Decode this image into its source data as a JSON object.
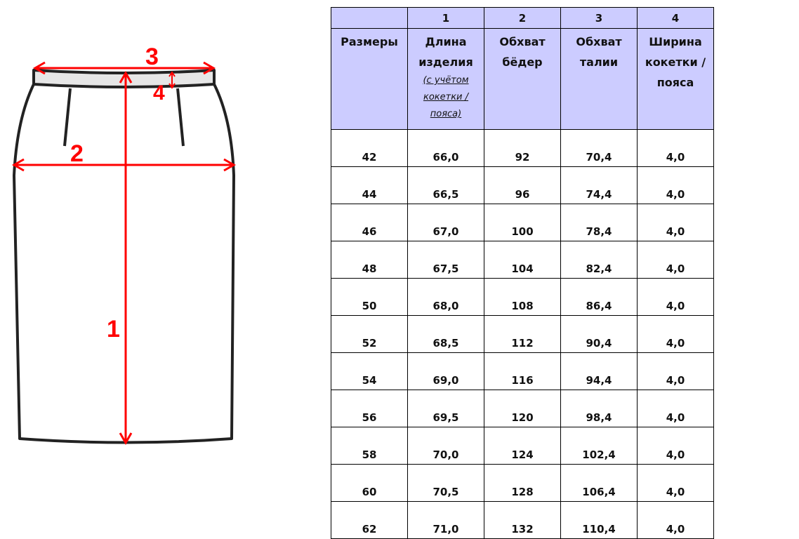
{
  "diagram": {
    "labels": [
      "1",
      "2",
      "3",
      "4"
    ],
    "accent": "#ff0000",
    "band_fill": "#e6e6e6"
  },
  "table": {
    "numbers": [
      "",
      "1",
      "2",
      "3",
      "4"
    ],
    "headers": [
      {
        "main": "Размеры",
        "note": ""
      },
      {
        "main": "Длина изделия",
        "note": "(с учётом кокетки / пояса)"
      },
      {
        "main": "Обхват бёдер",
        "note": ""
      },
      {
        "main": "Обхват талии",
        "note": ""
      },
      {
        "main": "Ширина кокетки / пояса",
        "note": ""
      }
    ],
    "header_bg": "#ccccff",
    "rows": [
      [
        "42",
        "66,0",
        "92",
        "70,4",
        "4,0"
      ],
      [
        "44",
        "66,5",
        "96",
        "74,4",
        "4,0"
      ],
      [
        "46",
        "67,0",
        "100",
        "78,4",
        "4,0"
      ],
      [
        "48",
        "67,5",
        "104",
        "82,4",
        "4,0"
      ],
      [
        "50",
        "68,0",
        "108",
        "86,4",
        "4,0"
      ],
      [
        "52",
        "68,5",
        "112",
        "90,4",
        "4,0"
      ],
      [
        "54",
        "69,0",
        "116",
        "94,4",
        "4,0"
      ],
      [
        "56",
        "69,5",
        "120",
        "98,4",
        "4,0"
      ],
      [
        "58",
        "70,0",
        "124",
        "102,4",
        "4,0"
      ],
      [
        "60",
        "70,5",
        "128",
        "106,4",
        "4,0"
      ],
      [
        "62",
        "71,0",
        "132",
        "110,4",
        "4,0"
      ]
    ]
  }
}
